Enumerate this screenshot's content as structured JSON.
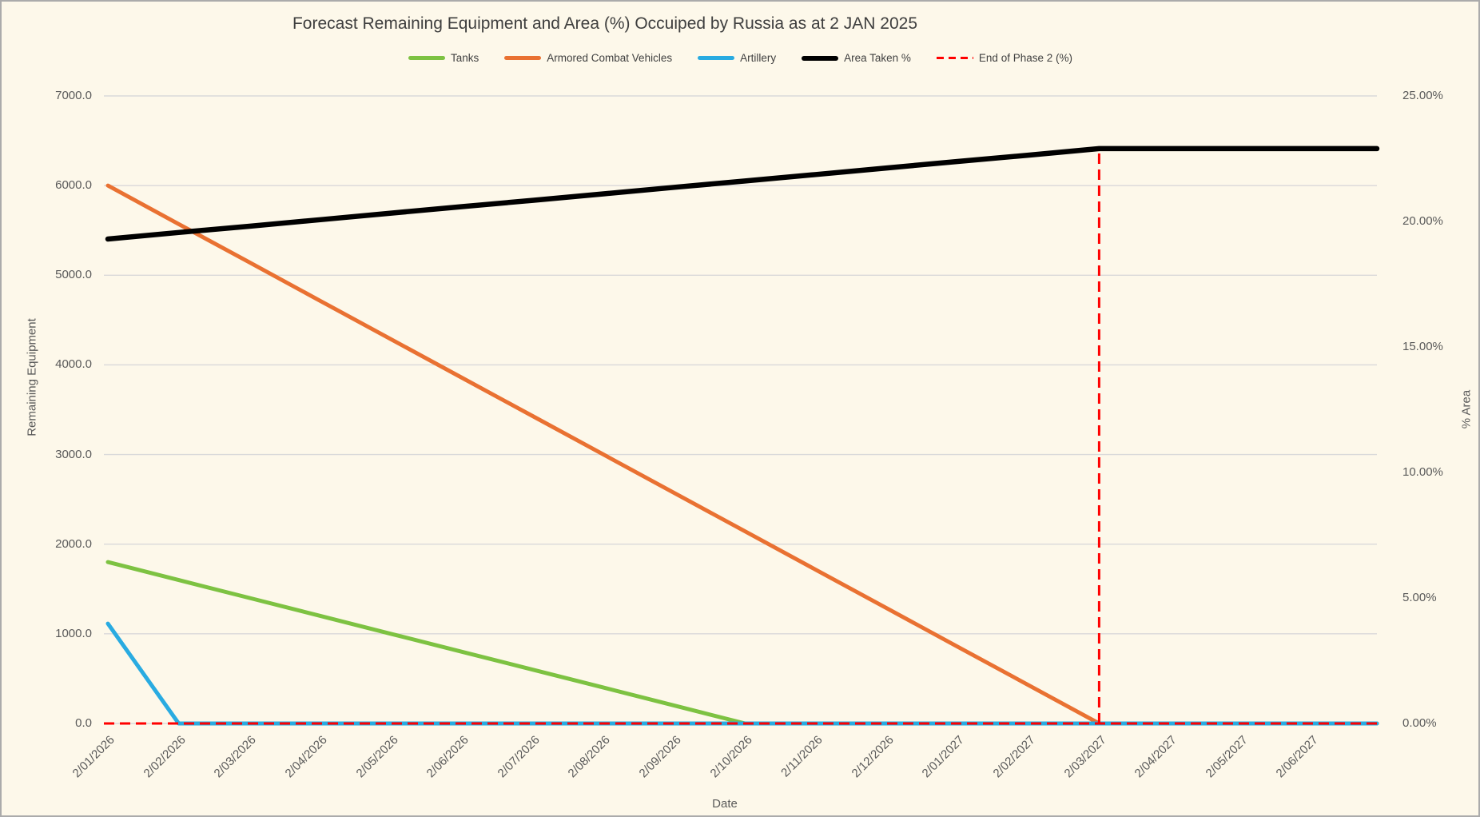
{
  "chart_data": {
    "type": "line",
    "title": "Forecast Remaining Equipment and Area (%) Occuiped by Russia as at 2 JAN 2025",
    "xlabel": "Date",
    "ylabel_left": "Remaining Equipment",
    "ylabel_right": "% Area",
    "legend_position": "top",
    "grid": "horizontal",
    "categories": [
      "2/01/2026",
      "2/02/2026",
      "2/03/2026",
      "2/04/2026",
      "2/05/2026",
      "2/06/2026",
      "2/07/2026",
      "2/08/2026",
      "2/09/2026",
      "2/10/2026",
      "2/11/2026",
      "2/12/2026",
      "2/01/2027",
      "2/02/2027",
      "2/03/2027",
      "2/04/2027",
      "2/05/2027",
      "2/06/2027"
    ],
    "left_axis": {
      "min": 0,
      "max": 7000,
      "tick_step": 1000,
      "tick_labels": [
        "0.0",
        "1000.0",
        "2000.0",
        "3000.0",
        "4000.0",
        "5000.0",
        "6000.0",
        "7000.0"
      ]
    },
    "right_axis": {
      "min": 0,
      "max": 25,
      "tick_step": 5,
      "tick_labels": [
        "0.00%",
        "5.00%",
        "10.00%",
        "15.00%",
        "20.00%",
        "25.00%"
      ]
    },
    "series": [
      {
        "name": "Tanks",
        "axis": "left",
        "color": "#7DC242",
        "style": "solid",
        "width": 5,
        "values": [
          1800,
          1600,
          1400,
          1200,
          1000,
          800,
          600,
          400,
          200,
          0,
          0,
          0,
          0,
          0,
          0,
          0,
          0,
          0
        ]
      },
      {
        "name": "Armored Combat Vehicles",
        "axis": "left",
        "color": "#E97132",
        "style": "solid",
        "width": 5,
        "values": [
          6000,
          5571,
          5143,
          4714,
          4286,
          3857,
          3429,
          3000,
          2571,
          2143,
          1714,
          1286,
          857,
          429,
          0,
          0,
          0,
          0
        ]
      },
      {
        "name": "Artillery",
        "axis": "left",
        "color": "#29ABE1",
        "style": "solid",
        "width": 5,
        "values": [
          1114,
          0,
          0,
          0,
          0,
          0,
          0,
          0,
          0,
          0,
          0,
          0,
          0,
          0,
          0,
          0,
          0,
          0
        ]
      },
      {
        "name": "Area Taken %",
        "axis": "right",
        "color": "#000000",
        "style": "solid",
        "width": 6.5,
        "values": [
          19.3,
          19.56,
          19.81,
          20.07,
          20.33,
          20.59,
          20.84,
          21.1,
          21.36,
          21.61,
          21.87,
          22.13,
          22.39,
          22.64,
          22.9,
          22.9,
          22.9,
          22.9
        ]
      },
      {
        "name": "End of Phase 2 (%)",
        "axis": "right",
        "color": "#FF0000",
        "style": "dashed",
        "width": 3,
        "dash": [
          13,
          7
        ],
        "baseline": 0,
        "vertical_marker": {
          "category": "2/03/2027",
          "index": 14,
          "value": 22.9
        },
        "values": [
          0,
          0,
          0,
          0,
          0,
          0,
          0,
          0,
          0,
          0,
          0,
          0,
          0,
          0,
          22.9,
          0,
          0,
          0
        ]
      }
    ],
    "colors": {
      "background": "#FDF8EA",
      "gridline": "#D9D9D9",
      "tick_text": "#595959",
      "title_text": "#3E3E3E",
      "border": "#ABABAB"
    }
  }
}
